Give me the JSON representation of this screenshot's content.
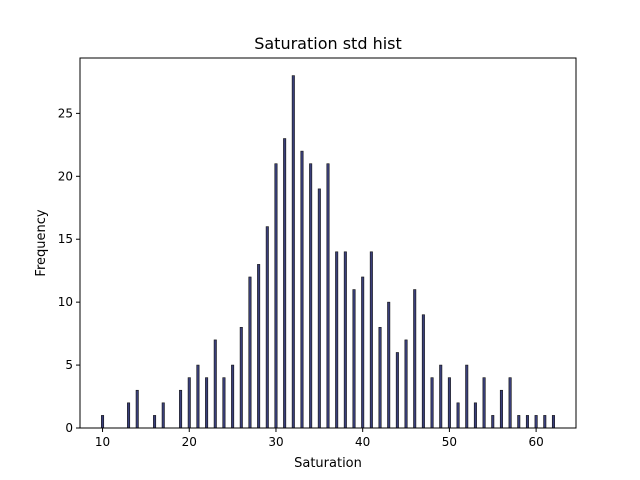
{
  "chart_data": {
    "type": "bar",
    "title": "Saturation std hist",
    "xlabel": "Saturation",
    "ylabel": "Frequency",
    "xlim": [
      7.4,
      64.6
    ],
    "ylim": [
      0,
      29.4
    ],
    "xticks": [
      10,
      20,
      30,
      40,
      50,
      60
    ],
    "yticks": [
      0,
      5,
      10,
      15,
      20,
      25
    ],
    "grid": false,
    "bar_fill_color": "#3a3f7a",
    "bar_edge_color": "#111111",
    "series": [
      {
        "x": [
          10,
          13,
          14,
          16,
          17,
          19,
          20,
          21,
          22,
          23,
          24,
          25,
          26,
          27,
          28,
          29,
          30,
          31,
          32,
          33,
          34,
          35,
          36,
          37,
          38,
          39,
          40,
          41,
          42,
          43,
          44,
          45,
          46,
          47,
          48,
          49,
          50,
          51,
          52,
          53,
          54,
          55,
          56,
          57,
          58,
          59,
          60,
          61,
          62
        ],
        "values": [
          1,
          2,
          3,
          1,
          2,
          3,
          4,
          5,
          4,
          7,
          4,
          5,
          8,
          12,
          13,
          16,
          21,
          23,
          28,
          22,
          21,
          19,
          21,
          14,
          14,
          11,
          12,
          14,
          8,
          10,
          6,
          7,
          11,
          9,
          4,
          5,
          4,
          2,
          5,
          2,
          4,
          1,
          3,
          4,
          1,
          1,
          1,
          1,
          1
        ]
      }
    ]
  }
}
